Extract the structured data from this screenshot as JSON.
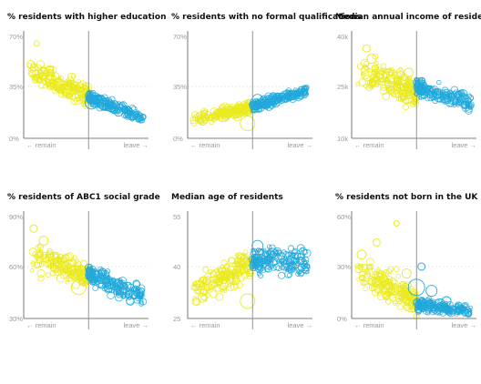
{
  "colors": {
    "remain": "#eaea1e",
    "leave": "#21a9dc",
    "axis": "#555555",
    "divider": "#8a8a8a",
    "grid": "#e4e4e4"
  },
  "labels": {
    "remain": "← remain",
    "leave": "leave →"
  },
  "chart_data": [
    {
      "type": "scatter",
      "title": "% residents with higher education",
      "xlabel": "",
      "ylabel": "",
      "ylim": [
        0,
        70
      ],
      "y_ticks": [
        "0%",
        "35%",
        "70%"
      ],
      "x_divider": 0,
      "series": [
        {
          "color": "remain",
          "trend": {
            "x": [
              -0.6,
              0.0
            ],
            "y": [
              46,
              29
            ]
          },
          "spread": 7,
          "points": [
            [
              -0.58,
              50,
              4
            ],
            [
              -0.52,
              64,
              3
            ],
            [
              -0.45,
              44,
              6
            ],
            [
              -0.38,
              40,
              5
            ],
            [
              -0.3,
              36,
              7
            ],
            [
              -0.22,
              33,
              6
            ],
            [
              -0.12,
              30,
              8
            ]
          ]
        },
        {
          "color": "leave",
          "trend": {
            "x": [
              0.0,
              0.55
            ],
            "y": [
              28,
              14
            ]
          },
          "spread": 3.5,
          "points": [
            [
              0.03,
              24,
              7
            ],
            [
              0.15,
              23,
              6
            ],
            [
              0.3,
              18,
              5
            ],
            [
              0.45,
              15,
              4
            ]
          ]
        }
      ]
    },
    {
      "type": "scatter",
      "title": "% residents with no formal qualifications",
      "xlabel": "",
      "ylabel": "",
      "ylim": [
        0,
        70
      ],
      "y_ticks": [
        "0%",
        "35%",
        "70%"
      ],
      "x_divider": 0,
      "series": [
        {
          "color": "remain",
          "trend": {
            "x": [
              -0.6,
              0.0
            ],
            "y": [
              13,
              21
            ]
          },
          "spread": 4,
          "points": [
            [
              -0.5,
              12,
              5
            ],
            [
              -0.3,
              15,
              6
            ],
            [
              -0.15,
              18,
              7
            ],
            [
              -0.05,
              10,
              8
            ]
          ]
        },
        {
          "color": "leave",
          "trend": {
            "x": [
              0.0,
              0.55
            ],
            "y": [
              22,
              32
            ]
          },
          "spread": 3,
          "points": [
            [
              0.05,
              26,
              6
            ],
            [
              0.2,
              27,
              5
            ],
            [
              0.4,
              30,
              4
            ]
          ]
        }
      ]
    },
    {
      "type": "scatter",
      "title": "Median annual income of residents",
      "xlabel": "",
      "ylabel": "",
      "ylim": [
        10,
        40
      ],
      "y_ticks": [
        "10k",
        "25k",
        "40k"
      ],
      "x_divider": 0,
      "series": [
        {
          "color": "remain",
          "trend": {
            "x": [
              -0.6,
              0.0
            ],
            "y": [
              30,
              23
            ]
          },
          "spread": 4,
          "points": [
            [
              -0.5,
              36,
              4
            ],
            [
              -0.45,
              33,
              5
            ],
            [
              -0.35,
              28,
              6
            ],
            [
              -0.1,
              22,
              7
            ],
            [
              -0.08,
              29,
              5
            ]
          ]
        },
        {
          "color": "leave",
          "trend": {
            "x": [
              0.0,
              0.55
            ],
            "y": [
              25,
              20
            ]
          },
          "spread": 2.2,
          "points": [
            [
              0.05,
              24,
              6
            ],
            [
              0.2,
              23,
              5
            ],
            [
              0.35,
              22,
              4
            ]
          ]
        }
      ]
    },
    {
      "type": "scatter",
      "title": "% residents of ABC1 social grade",
      "xlabel": "",
      "ylabel": "",
      "ylim": [
        30,
        90
      ],
      "y_ticks": [
        "30%",
        "60%",
        "90%"
      ],
      "x_divider": 0,
      "series": [
        {
          "color": "remain",
          "trend": {
            "x": [
              -0.6,
              0.0
            ],
            "y": [
              66,
              55
            ]
          },
          "spread": 7,
          "points": [
            [
              -0.55,
              82,
              4
            ],
            [
              -0.45,
              75,
              5
            ],
            [
              -0.35,
              65,
              6
            ],
            [
              -0.1,
              48,
              8
            ],
            [
              -0.2,
              60,
              7
            ]
          ]
        },
        {
          "color": "leave",
          "trend": {
            "x": [
              0.0,
              0.55
            ],
            "y": [
              55,
              43
            ]
          },
          "spread": 5,
          "points": [
            [
              0.05,
              55,
              6
            ],
            [
              0.2,
              48,
              5
            ],
            [
              0.4,
              44,
              4
            ]
          ]
        }
      ]
    },
    {
      "type": "scatter",
      "title": "Median age of residents",
      "xlabel": "",
      "ylabel": "",
      "ylim": [
        25,
        55
      ],
      "y_ticks": [
        "25",
        "40",
        "55"
      ],
      "x_divider": 0,
      "series": [
        {
          "color": "remain",
          "trend": {
            "x": [
              -0.6,
              0.0
            ],
            "y": [
              33,
              41
            ]
          },
          "spread": 3.5,
          "points": [
            [
              -0.5,
              31,
              5
            ],
            [
              -0.3,
              35,
              6
            ],
            [
              -0.05,
              30,
              8
            ],
            [
              -0.1,
              42,
              6
            ]
          ]
        },
        {
          "color": "leave",
          "trend": {
            "x": [
              0.0,
              0.55
            ],
            "y": [
              42,
              41
            ]
          },
          "spread": 4,
          "points": [
            [
              0.05,
              46,
              6
            ],
            [
              0.2,
              44,
              5
            ],
            [
              0.4,
              40,
              4
            ]
          ]
        }
      ]
    },
    {
      "type": "scatter",
      "title": "% residents not born in the UK",
      "xlabel": "",
      "ylabel": "",
      "ylim": [
        0,
        60
      ],
      "y_ticks": [
        "0%",
        "30%",
        "60%"
      ],
      "x_divider": 0,
      "series": [
        {
          "color": "remain",
          "trend": {
            "x": [
              -0.6,
              0.0
            ],
            "y": [
              28,
              10
            ]
          },
          "spread": 8,
          "points": [
            [
              -0.55,
              37,
              5
            ],
            [
              -0.4,
              44,
              4
            ],
            [
              -0.1,
              26,
              5
            ],
            [
              -0.2,
              55,
              3
            ],
            [
              -0.05,
              8,
              8
            ]
          ]
        },
        {
          "color": "leave",
          "trend": {
            "x": [
              0.0,
              0.55
            ],
            "y": [
              8,
              4
            ]
          },
          "spread": 3,
          "points": [
            [
              0.0,
              18,
              9
            ],
            [
              0.15,
              16,
              6
            ],
            [
              0.05,
              30,
              4
            ],
            [
              0.3,
              10,
              5
            ]
          ]
        }
      ]
    }
  ]
}
